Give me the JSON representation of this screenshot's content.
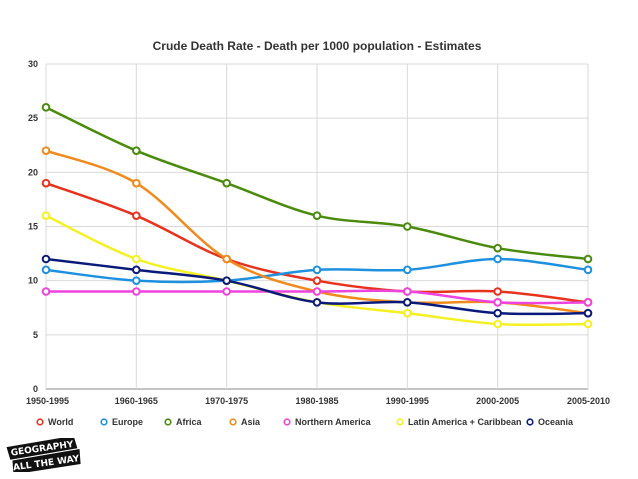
{
  "chart_data": {
    "type": "line",
    "title": "Crude Death Rate - Death per 1000 population - Estimates",
    "xlabel": "",
    "ylabel": "",
    "categories": [
      "1950-1995",
      "1960-1965",
      "1970-1975",
      "1980-1985",
      "1990-1995",
      "2000-2005",
      "2005-2010"
    ],
    "ylim": [
      0,
      30
    ],
    "yticks": [
      0,
      5,
      10,
      15,
      20,
      25,
      30
    ],
    "grid": true,
    "legend_position": "bottom",
    "series": [
      {
        "name": "World",
        "color": "#e8321e",
        "values": [
          19,
          16,
          12,
          10,
          9,
          9,
          8
        ]
      },
      {
        "name": "Europe",
        "color": "#1e90e0",
        "values": [
          11,
          10,
          10,
          11,
          11,
          12,
          11
        ]
      },
      {
        "name": "Africa",
        "color": "#4a8a0c",
        "values": [
          26,
          22,
          19,
          16,
          15,
          13,
          12
        ]
      },
      {
        "name": "Asia",
        "color": "#f08a1c",
        "values": [
          22,
          19,
          12,
          9,
          8,
          8,
          7
        ]
      },
      {
        "name": "Northern America",
        "color": "#ee44dd",
        "values": [
          9,
          9,
          9,
          9,
          9,
          8,
          8
        ]
      },
      {
        "name": "Latin America + Caribbean",
        "color": "#f5f020",
        "values": [
          16,
          12,
          10,
          8,
          7,
          6,
          6
        ]
      },
      {
        "name": "Oceania",
        "color": "#0a1a7a",
        "values": [
          12,
          11,
          10,
          8,
          8,
          7,
          7
        ]
      }
    ]
  },
  "logo": {
    "line1": "GEOGRAPHY",
    "line2": "ALL THE WAY"
  }
}
